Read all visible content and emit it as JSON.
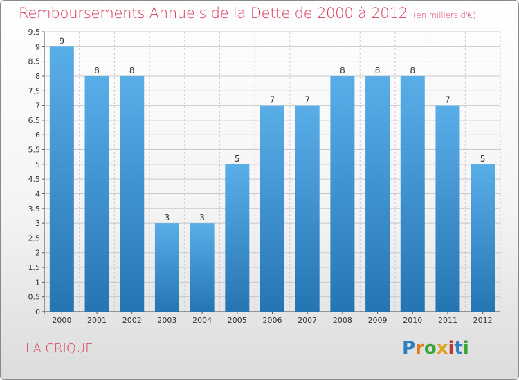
{
  "chart_data": {
    "type": "bar",
    "title": "Remboursements Annuels de la Dette de 2000 à 2012",
    "unit": "(en milliers d'€)",
    "categories": [
      "2000",
      "2001",
      "2002",
      "2003",
      "2004",
      "2005",
      "2006",
      "2007",
      "2008",
      "2009",
      "2010",
      "2011",
      "2012"
    ],
    "values": [
      9,
      8,
      8,
      3,
      3,
      5,
      7,
      7,
      8,
      8,
      8,
      7,
      5
    ],
    "ylim": [
      0,
      9.5
    ],
    "yticks": [
      "0",
      "0.5",
      "1",
      "1.5",
      "2",
      "2.5",
      "3",
      "3.5",
      "4",
      "4.5",
      "5",
      "5.5",
      "6",
      "6.5",
      "7",
      "7.5",
      "8",
      "8.5",
      "9",
      "9.5"
    ],
    "xlabel": "",
    "ylabel": "",
    "grid": true
  },
  "location": "LA CRIQUE",
  "logo": {
    "letters": [
      "P",
      "r",
      "o",
      "x",
      "i",
      "t",
      "i"
    ],
    "colors": [
      "#2e7ec0",
      "#e07a1f",
      "#3aa33a",
      "#e0a21a",
      "#c0392b",
      "#2e7ec0",
      "#3aa33a"
    ]
  },
  "colors": {
    "title": "#d93a5a",
    "bar_top": "#5aaee8",
    "bar_bottom": "#2575b3",
    "grid": "#c9c9c9"
  }
}
